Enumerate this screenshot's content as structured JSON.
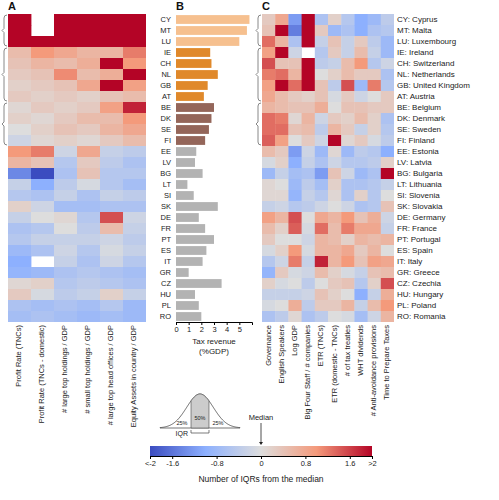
{
  "chart_data": [
    {
      "type": "heatmap",
      "title": "A",
      "columns": [
        "Profit Rate (TNCs)",
        "Profit Rate (TNCs - domestic)",
        "# large top holdings / GDP",
        "# small top holdings / GDP",
        "# large top head offices / GDP",
        "Equity Assets in country / GDP"
      ],
      "cells": [
        [
          2,
          null,
          2,
          2,
          2,
          2
        ],
        [
          2,
          null,
          2,
          2,
          2,
          2
        ],
        [
          2,
          2,
          2,
          2,
          2,
          2
        ],
        [
          0.5,
          1.0,
          0.8,
          0.6,
          0.6,
          1.2
        ],
        [
          0.4,
          0.6,
          0.5,
          0.7,
          2,
          1.0
        ],
        [
          0.3,
          0.4,
          1.1,
          0.5,
          0.7,
          2
        ],
        [
          0.2,
          0.3,
          0.4,
          0.8,
          2,
          0.9
        ],
        [
          0.3,
          0.2,
          0.3,
          0.2,
          0.4,
          0.5
        ],
        [
          0.1,
          0.3,
          0.2,
          0.3,
          0.9,
          1.8
        ],
        [
          0.2,
          0.1,
          0.3,
          0.5,
          0.5,
          1.0
        ],
        [
          0.0,
          0.2,
          0.4,
          0.3,
          0.6,
          0.8
        ],
        [
          -0.2,
          0.1,
          0.2,
          0.1,
          0.3,
          0.5
        ],
        [
          1.0,
          1.2,
          -0.2,
          0.8,
          -0.3,
          -0.4
        ],
        [
          0.6,
          0.4,
          -0.5,
          0.3,
          -0.4,
          -0.6
        ],
        [
          -1.4,
          -2,
          -0.6,
          0.4,
          -0.5,
          -0.5
        ],
        [
          -0.3,
          -1.0,
          -0.4,
          -0.1,
          -0.5,
          -0.7
        ],
        [
          -0.5,
          -0.6,
          -0.3,
          -0.6,
          -0.3,
          -0.4
        ],
        [
          0.2,
          -0.2,
          -0.7,
          -0.7,
          -0.6,
          -0.6
        ],
        [
          -0.3,
          0.0,
          0.1,
          -0.5,
          1.5,
          -0.2
        ],
        [
          -0.6,
          -0.5,
          0.0,
          -0.4,
          0.5,
          -0.3
        ],
        [
          -0.5,
          -0.3,
          -0.3,
          -0.3,
          -0.2,
          -0.4
        ],
        [
          -0.8,
          -0.6,
          -0.2,
          -0.5,
          -0.1,
          -0.3
        ],
        [
          -1.0,
          null,
          -0.3,
          -0.6,
          -0.2,
          -0.5
        ],
        [
          -0.9,
          -0.8,
          -0.6,
          -0.5,
          -0.6,
          -0.7
        ],
        [
          0.1,
          0.2,
          -0.5,
          -0.4,
          -0.5,
          -0.6
        ],
        [
          0.3,
          -0.1,
          -0.4,
          -0.3,
          0.2,
          -0.3
        ],
        [
          -0.6,
          -0.7,
          -0.6,
          -0.7,
          -0.5,
          -0.8
        ],
        [
          -0.7,
          -0.6,
          -0.7,
          -0.8,
          -0.7,
          -0.8
        ]
      ],
      "colorbar": {
        "range": [
          -2,
          2
        ],
        "ticks": [
          {
            "value": -2,
            "label": "<-2"
          },
          -1.6,
          -0.8,
          0,
          0.8,
          1.6,
          {
            "value": 2,
            "label": ">2"
          }
        ],
        "label": "Number of IQRs from the median",
        "median_label": "Median",
        "iqr_label": "IQR",
        "quantiles": [
          {
            "value": 25,
            "label": "25%"
          },
          {
            "value": 50,
            "label": "50%"
          },
          {
            "value": 25,
            "label": "25%"
          }
        ]
      }
    },
    {
      "type": "bar",
      "title": "B",
      "orientation": "horizontal",
      "categories": [
        "CY",
        "MT",
        "LU",
        "IE",
        "CH",
        "NL",
        "GB",
        "AT",
        "BE",
        "DK",
        "SE",
        "FI",
        "EE",
        "LV",
        "BG",
        "LT",
        "SI",
        "SK",
        "DE",
        "FR",
        "PT",
        "ES",
        "IT",
        "GR",
        "CZ",
        "HU",
        "PL",
        "RO"
      ],
      "values": [
        5.8,
        5.6,
        5.0,
        2.7,
        2.8,
        3.3,
        2.5,
        2.2,
        3.0,
        2.8,
        2.6,
        2.3,
        1.6,
        1.5,
        2.1,
        0.9,
        1.4,
        3.3,
        1.8,
        2.3,
        3.0,
        2.4,
        2.1,
        1.0,
        3.6,
        1.5,
        1.8,
        2.0
      ],
      "colors": [
        "#f6c08f",
        "#f6c08f",
        "#f6c08f",
        "#e0892b",
        "#e0892b",
        "#e0892b",
        "#e0892b",
        "#e0892b",
        "#94665a",
        "#94665a",
        "#94665a",
        "#94665a",
        "#b3b3b3",
        "#b3b3b3",
        "#b3b3b3",
        "#b3b3b3",
        "#b3b3b3",
        "#b3b3b3",
        "#b3b3b3",
        "#b3b3b3",
        "#b3b3b3",
        "#b3b3b3",
        "#b3b3b3",
        "#b3b3b3",
        "#b3b3b3",
        "#b3b3b3",
        "#b3b3b3",
        "#b3b3b3"
      ],
      "xlim": [
        0,
        6
      ],
      "xticks": [
        0,
        1,
        2,
        3,
        4,
        5
      ],
      "xlabel": "Tax revenue\n(%GDP)"
    },
    {
      "type": "heatmap",
      "title": "C",
      "rows": [
        "CY: Cyprus",
        "MT: Malta",
        "LU: Luxembourg",
        "IE: Ireland",
        "CH: Switzerland",
        "NL: Netherlands",
        "GB: United Kingdom",
        "AT: Austria",
        "BE: Belgium",
        "DK: Denmark",
        "SE: Sweden",
        "FI: Finland",
        "EE: Estonia",
        "LV: Latvia",
        "BG: Bulgaria",
        "LT: Lithuania",
        "SI: Slovenia",
        "SK: Slovakia",
        "DE: Germany",
        "FR: France",
        "PT: Portugal",
        "ES: Spain",
        "IT: Italy",
        "GR: Greece",
        "CZ: Czechia",
        "HU: Hungary",
        "PL: Poland",
        "RO: Romania"
      ],
      "columns": [
        "Governance",
        "English Speakers",
        "Log GDP",
        "Big Four Staff / # companies",
        "ETR (TNCs)",
        "ETR (domestic - TNCs)",
        "# of tax treaties",
        "WHT dividends",
        "# Anti-avoidance provisions",
        "Time to Prepare Taxes"
      ],
      "cells": [
        [
          0.3,
          0.8,
          -1.2,
          2,
          -0.6,
          0.2,
          -0.5,
          -1.0,
          -0.8,
          -0.4
        ],
        [
          0.4,
          2,
          -1.5,
          2,
          0.3,
          -0.8,
          -0.6,
          -1.0,
          -0.6,
          -0.5
        ],
        [
          1.3,
          0.6,
          -0.6,
          2,
          -0.3,
          0.4,
          -0.3,
          0.3,
          -0.4,
          -0.8
        ],
        [
          0.9,
          2,
          -0.2,
          null,
          -0.5,
          0.3,
          -0.3,
          0.5,
          -0.3,
          -0.8
        ],
        [
          1.5,
          0.4,
          0.4,
          2,
          -0.4,
          -0.3,
          0.5,
          1.0,
          -0.5,
          -0.2
        ],
        [
          1.2,
          1.3,
          0.6,
          2,
          0.0,
          0.2,
          0.5,
          0.3,
          0.3,
          -0.6
        ],
        [
          0.9,
          2,
          1.3,
          2,
          0.4,
          -0.4,
          1.5,
          -0.8,
          1.2,
          -0.5
        ],
        [
          0.8,
          0.5,
          0.3,
          0.2,
          0.4,
          -0.1,
          0.3,
          -0.2,
          0.0,
          0.3
        ],
        [
          0.6,
          0.5,
          0.4,
          0.4,
          0.7,
          0.0,
          0.4,
          0.4,
          0.3,
          0.3
        ],
        [
          1.3,
          1.2,
          0.1,
          0.6,
          -0.2,
          0.3,
          0.2,
          0.5,
          0.2,
          -0.6
        ],
        [
          1.3,
          1.3,
          0.4,
          0.5,
          -0.4,
          0.6,
          0.3,
          -0.3,
          0.2,
          -0.5
        ],
        [
          1.4,
          0.9,
          0.0,
          0.3,
          -0.2,
          2,
          0.1,
          0.3,
          -0.1,
          -0.4
        ],
        [
          0.5,
          0.3,
          -1.2,
          -0.2,
          -0.8,
          0.1,
          -0.8,
          -0.4,
          -0.5,
          -1.0
        ],
        [
          -0.1,
          0.2,
          -1.0,
          -0.3,
          -0.6,
          -0.2,
          -0.5,
          -0.5,
          -0.4,
          0.2
        ],
        [
          -0.8,
          -0.3,
          -0.7,
          -0.6,
          -1.2,
          0.4,
          -0.2,
          -0.8,
          -0.6,
          2
        ],
        [
          0.1,
          0.0,
          -0.8,
          -0.4,
          -0.7,
          0.2,
          -0.6,
          -0.6,
          -0.5,
          -0.3
        ],
        [
          0.1,
          0.1,
          -0.9,
          -0.3,
          -0.5,
          0.1,
          -0.6,
          0.2,
          -0.5,
          0.0
        ],
        [
          -0.3,
          -0.2,
          -0.5,
          -0.4,
          -0.2,
          0.0,
          -0.2,
          -0.6,
          -0.5,
          0.4
        ],
        [
          0.9,
          0.6,
          1.5,
          0.0,
          0.8,
          0.6,
          1.0,
          0.4,
          0.7,
          -0.2
        ],
        [
          0.5,
          0.2,
          1.4,
          -0.1,
          1.3,
          0.5,
          1.2,
          0.8,
          0.8,
          -0.3
        ],
        [
          0.3,
          0.0,
          0.0,
          -0.2,
          0.6,
          0.5,
          0.2,
          0.6,
          0.5,
          0.6
        ],
        [
          -0.1,
          0.2,
          1.0,
          -0.1,
          0.6,
          0.6,
          0.8,
          0.3,
          0.6,
          0.0
        ],
        [
          -0.5,
          -0.2,
          1.2,
          -0.3,
          1.8,
          0.6,
          1.0,
          0.4,
          0.9,
          0.8
        ],
        [
          -0.9,
          0.3,
          -0.1,
          -0.2,
          0.5,
          0.2,
          -0.1,
          -0.3,
          0.4,
          0.5
        ],
        [
          0.2,
          -0.1,
          0.0,
          -0.4,
          0.0,
          0.3,
          0.4,
          -0.5,
          0.2,
          1.5
        ],
        [
          -0.3,
          -0.3,
          -0.3,
          -0.2,
          0.4,
          0.2,
          0.0,
          -1.0,
          -0.3,
          0.7
        ],
        [
          -0.1,
          0.0,
          0.7,
          -0.4,
          0.3,
          0.3,
          0.6,
          -0.3,
          0.5,
          1.0
        ],
        [
          -0.6,
          -0.4,
          0.1,
          -0.6,
          -0.4,
          0.0,
          -0.1,
          -0.7,
          -0.2,
          0.6
        ]
      ]
    }
  ]
}
